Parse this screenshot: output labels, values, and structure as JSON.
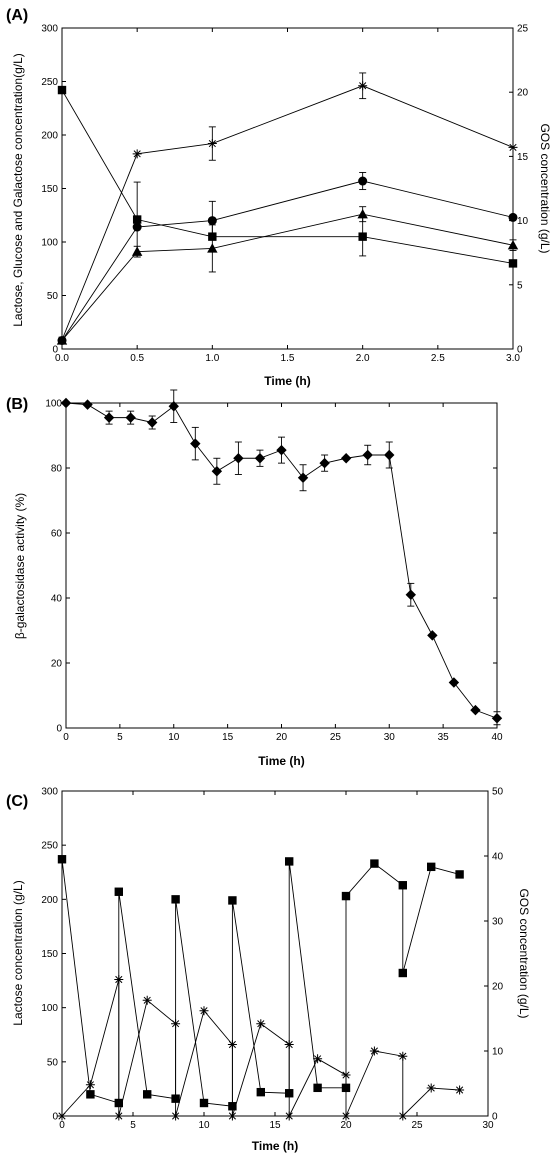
{
  "chart_data": [
    {
      "type": "line",
      "panel_label": "(A)",
      "xlabel": "Time (h)",
      "ylabel": "Lactose, Glucose and Galactose concentration(g/L)",
      "y2label": "GOS concentration (g/L)",
      "xlim": [
        0,
        3
      ],
      "ylim": [
        0,
        300
      ],
      "y2lim": [
        0,
        25
      ],
      "xticks": [
        "0.0",
        "0.5",
        "1.0",
        "1.5",
        "2.0",
        "2.5",
        "3.0"
      ],
      "yticks": [
        "0",
        "50",
        "100",
        "150",
        "200",
        "250",
        "300"
      ],
      "y2ticks": [
        "0",
        "5",
        "10",
        "15",
        "20",
        "25"
      ],
      "series": [
        {
          "marker": "square",
          "axis": "left",
          "x": [
            0,
            0.5,
            1,
            2,
            3
          ],
          "values": [
            242,
            121,
            105,
            105,
            80
          ],
          "err": [
            0,
            35,
            0,
            18,
            0
          ]
        },
        {
          "marker": "circle",
          "axis": "left",
          "x": [
            0,
            0.5,
            1,
            2,
            3
          ],
          "values": [
            8,
            114,
            120,
            157,
            123
          ],
          "err": [
            0,
            0,
            18,
            8,
            0
          ]
        },
        {
          "marker": "triangle",
          "axis": "left",
          "x": [
            0,
            0.5,
            1,
            2,
            3
          ],
          "values": [
            8,
            91,
            94,
            126,
            97
          ],
          "err": [
            0,
            5,
            22,
            7,
            5
          ]
        },
        {
          "marker": "asterisk",
          "axis": "right",
          "x": [
            0,
            0.5,
            1,
            2,
            3
          ],
          "values": [
            0.7,
            15.2,
            16.0,
            20.5,
            15.7
          ],
          "err": [
            0,
            0,
            1.3,
            1.0,
            0
          ]
        }
      ]
    },
    {
      "type": "line",
      "panel_label": "(B)",
      "xlabel": "Time (h)",
      "ylabel": "β-galactosidase activity (%)",
      "xlim": [
        0,
        40
      ],
      "ylim": [
        0,
        100
      ],
      "xticks": [
        "0",
        "5",
        "10",
        "15",
        "20",
        "25",
        "30",
        "35",
        "40"
      ],
      "yticks": [
        "0",
        "20",
        "40",
        "60",
        "80",
        "100"
      ],
      "series": [
        {
          "marker": "diamond",
          "axis": "left",
          "x": [
            0,
            2,
            4,
            6,
            8,
            10,
            12,
            14,
            16,
            18,
            20,
            22,
            24,
            26,
            28,
            30,
            32,
            34,
            36,
            38,
            40
          ],
          "values": [
            100,
            99.5,
            95.5,
            95.5,
            94,
            99,
            87.5,
            79,
            83,
            83,
            85.5,
            77,
            81.5,
            83,
            84,
            84,
            41,
            28.5,
            14,
            5.5,
            3
          ],
          "err": [
            0,
            0,
            2,
            2,
            2,
            5,
            5,
            4,
            5,
            2.5,
            4,
            4,
            2.5,
            0,
            3,
            4,
            3.5,
            0,
            0,
            0,
            2
          ]
        }
      ]
    },
    {
      "type": "line",
      "panel_label": "(C)",
      "xlabel": "Time (h)",
      "ylabel": "Lactose concentration (g/L)",
      "y2label": "GOS concentration (g/L)",
      "xlim": [
        0,
        30
      ],
      "ylim": [
        0,
        300
      ],
      "y2lim": [
        0,
        50
      ],
      "xticks": [
        "0",
        "5",
        "10",
        "15",
        "20",
        "25",
        "30"
      ],
      "yticks": [
        "0",
        "50",
        "100",
        "150",
        "200",
        "250",
        "300"
      ],
      "y2ticks": [
        "0",
        "10",
        "20",
        "30",
        "40",
        "50"
      ],
      "series": [
        {
          "marker": "square",
          "axis": "left",
          "x": [
            0,
            2,
            4,
            4,
            6,
            8,
            8,
            10,
            12,
            12,
            14,
            16,
            16,
            18,
            20,
            20,
            22,
            24,
            24,
            26,
            28
          ],
          "values": [
            237,
            20,
            12,
            207,
            20,
            16,
            200,
            12,
            9,
            199,
            22,
            21,
            235,
            26,
            26,
            203,
            233,
            213,
            132,
            230,
            223
          ]
        },
        {
          "marker": "asterisk",
          "axis": "right",
          "x": [
            0,
            2,
            4,
            4,
            6,
            8,
            8,
            10,
            12,
            12,
            14,
            16,
            16,
            18,
            20,
            20,
            22,
            24,
            24,
            26,
            28
          ],
          "values": [
            0,
            4.8,
            21,
            0,
            17.8,
            14.2,
            0,
            16.2,
            11,
            0,
            14.2,
            11,
            0,
            8.8,
            6.3,
            0,
            10,
            9.2,
            0,
            4.3,
            4
          ]
        }
      ]
    }
  ]
}
